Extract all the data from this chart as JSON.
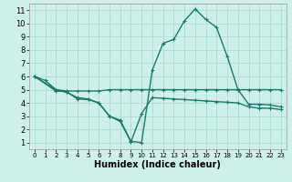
{
  "xlabel": "Humidex (Indice chaleur)",
  "bg_color": "#cef0ea",
  "grid_color": "#aad8d0",
  "line_color": "#1a7a6e",
  "xlim": [
    -0.5,
    23.5
  ],
  "ylim": [
    0.5,
    11.5
  ],
  "xticks": [
    0,
    1,
    2,
    3,
    4,
    5,
    6,
    7,
    8,
    9,
    10,
    11,
    12,
    13,
    14,
    15,
    16,
    17,
    18,
    19,
    20,
    21,
    22,
    23
  ],
  "yticks": [
    1,
    2,
    3,
    4,
    5,
    6,
    7,
    8,
    9,
    10,
    11
  ],
  "line1_x": [
    0,
    1,
    2,
    3,
    4,
    5,
    6,
    7,
    8,
    9,
    10,
    11,
    12,
    13,
    14,
    15,
    16,
    17,
    18,
    19,
    20,
    21,
    22,
    23
  ],
  "line1_y": [
    6.0,
    5.7,
    5.0,
    4.9,
    4.9,
    4.9,
    4.9,
    5.0,
    5.0,
    5.0,
    5.0,
    5.0,
    5.0,
    5.0,
    5.0,
    5.0,
    5.0,
    5.0,
    5.0,
    5.0,
    5.0,
    5.0,
    5.0,
    5.0
  ],
  "line2_x": [
    0,
    2,
    3,
    4,
    5,
    6,
    7,
    8,
    9,
    10,
    11,
    12,
    13,
    14,
    15,
    16,
    17,
    18,
    19,
    20,
    21,
    22,
    23
  ],
  "line2_y": [
    6.0,
    5.0,
    4.8,
    4.4,
    4.3,
    4.0,
    3.0,
    2.7,
    1.1,
    1.0,
    6.5,
    8.5,
    8.8,
    10.2,
    11.1,
    10.3,
    9.7,
    7.5,
    5.0,
    3.9,
    3.9,
    3.85,
    3.7
  ],
  "line3_x": [
    0,
    2,
    3,
    4,
    5,
    6,
    7,
    8,
    9,
    10,
    11,
    12,
    13,
    14,
    15,
    16,
    17,
    18,
    19,
    20,
    21,
    22,
    23
  ],
  "line3_y": [
    6.0,
    4.9,
    4.85,
    4.3,
    4.25,
    4.0,
    3.0,
    2.6,
    1.05,
    3.2,
    4.4,
    4.35,
    4.3,
    4.25,
    4.2,
    4.15,
    4.1,
    4.05,
    4.0,
    3.7,
    3.6,
    3.6,
    3.5
  ],
  "marker_size": 3.5,
  "line_width": 1.0,
  "xlabel_fontsize": 7,
  "tick_fontsize_x": 5,
  "tick_fontsize_y": 6
}
